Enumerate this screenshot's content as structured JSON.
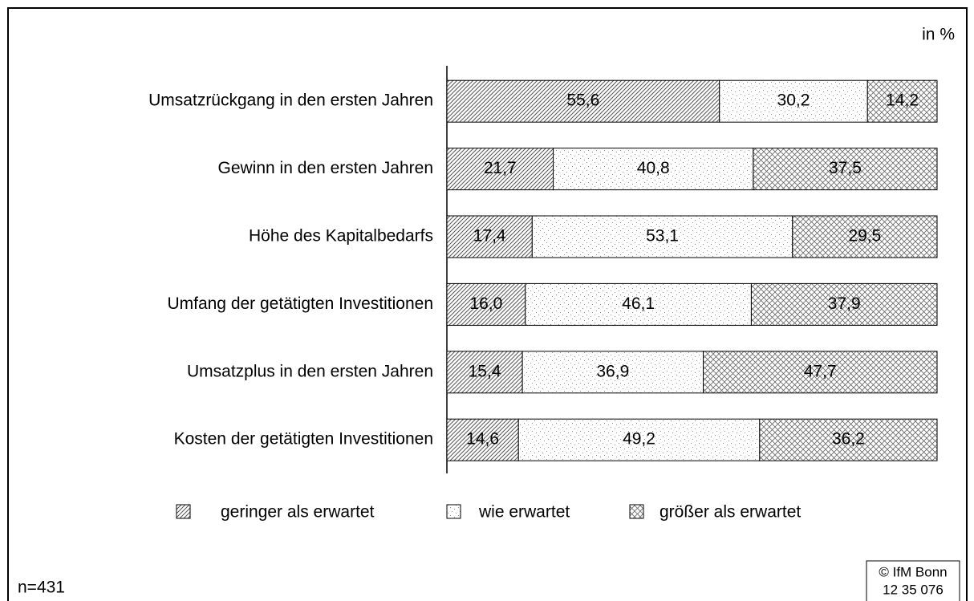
{
  "chart_data": {
    "type": "stacked_barh",
    "unit_label": "in %",
    "categories": [
      "Umsatzrückgang in den ersten Jahren",
      "Gewinn in den ersten Jahren",
      "Höhe des Kapitalbedarfs",
      "Umfang der getätigten Investitionen",
      "Umsatzplus in den ersten Jahren",
      "Kosten der getätigten Investitionen"
    ],
    "series": [
      {
        "name": "geringer als erwartet",
        "color": "#000000",
        "pattern": "diagonal",
        "values": [
          55.6,
          21.7,
          17.4,
          16.0,
          15.4,
          14.6
        ],
        "value_labels": [
          "55,6",
          "21,7",
          "17,4",
          "16,0",
          "15,4",
          "14,6"
        ]
      },
      {
        "name": "wie erwartet",
        "color": "#000000",
        "pattern": "dots",
        "values": [
          30.2,
          40.8,
          53.1,
          46.1,
          36.9,
          49.2
        ],
        "value_labels": [
          "30,2",
          "40,8",
          "53,1",
          "46,1",
          "36,9",
          "49,2"
        ]
      },
      {
        "name": "größer als erwartet",
        "color": "#000000",
        "pattern": "cross",
        "values": [
          14.2,
          37.5,
          29.5,
          37.9,
          47.7,
          36.2
        ],
        "value_labels": [
          "14,2",
          "37,5",
          "29,5",
          "37,9",
          "47,7",
          "36,2"
        ]
      }
    ],
    "xlim": [
      0,
      100
    ],
    "sample_note": "n=431",
    "source": [
      "© IfM Bonn",
      "12 35 076"
    ]
  }
}
